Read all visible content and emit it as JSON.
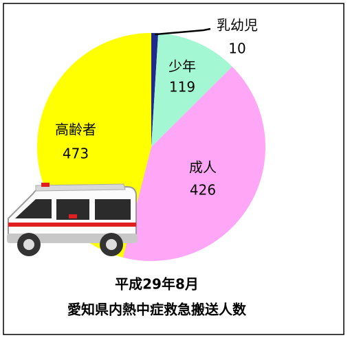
{
  "chart_data": {
    "type": "pie",
    "title": "平成29年8月",
    "subtitle": "愛知県内熱中症救急搬送人数",
    "categories": [
      "乳幼児",
      "少年",
      "成人",
      "高齢者"
    ],
    "values": [
      10,
      119,
      426,
      473
    ],
    "colors": [
      "#1f2a8c",
      "#a3f7d2",
      "#ffa6f6",
      "#ffff00"
    ]
  }
}
